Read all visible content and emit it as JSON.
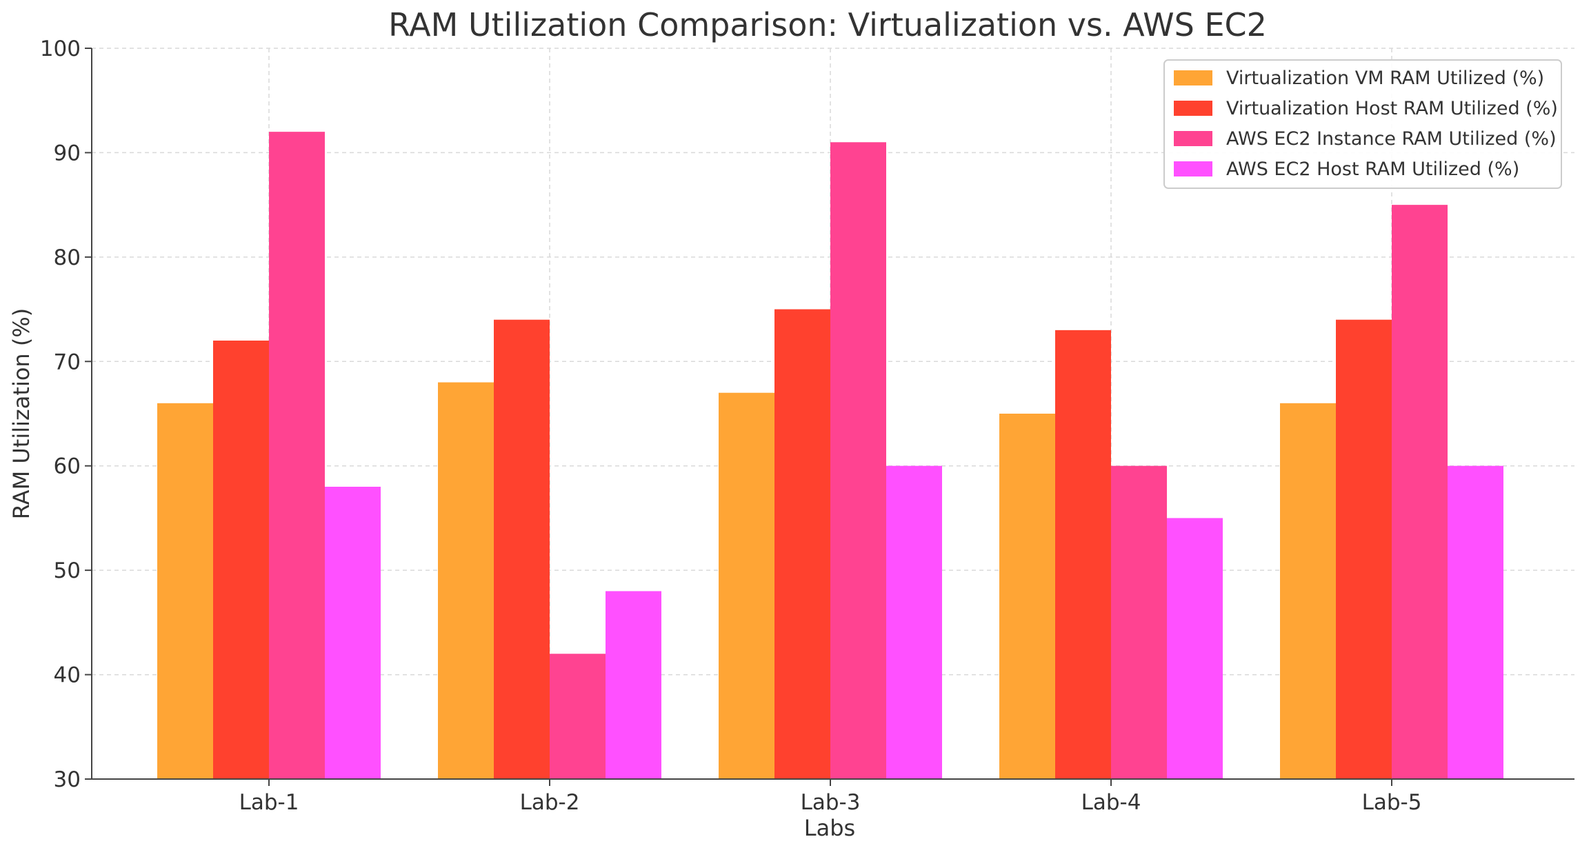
{
  "chart_data": {
    "type": "bar",
    "title": "RAM Utilization Comparison: Virtualization vs. AWS EC2",
    "xlabel": "Labs",
    "ylabel": "RAM Utilization (%)",
    "ylim": [
      30,
      100
    ],
    "yticks": [
      30,
      40,
      50,
      60,
      70,
      80,
      90,
      100
    ],
    "grid": true,
    "legend_position": "top-right",
    "categories": [
      "Lab-1",
      "Lab-2",
      "Lab-3",
      "Lab-4",
      "Lab-5"
    ],
    "series": [
      {
        "name": "Virtualization VM RAM Utilized (%)",
        "color": "#FFA535",
        "values": [
          66,
          68,
          67,
          65,
          66
        ]
      },
      {
        "name": "Virtualization Host RAM Utilized (%)",
        "color": "#FF412E",
        "values": [
          72,
          74,
          75,
          73,
          74
        ]
      },
      {
        "name": "AWS EC2 Instance RAM Utilized (%)",
        "color": "#FF4391",
        "values": [
          92,
          42,
          91,
          60,
          85
        ]
      },
      {
        "name": "AWS EC2 Host RAM Utilized (%)",
        "color": "#FF50FF",
        "values": [
          58,
          48,
          60,
          55,
          60
        ]
      }
    ]
  }
}
